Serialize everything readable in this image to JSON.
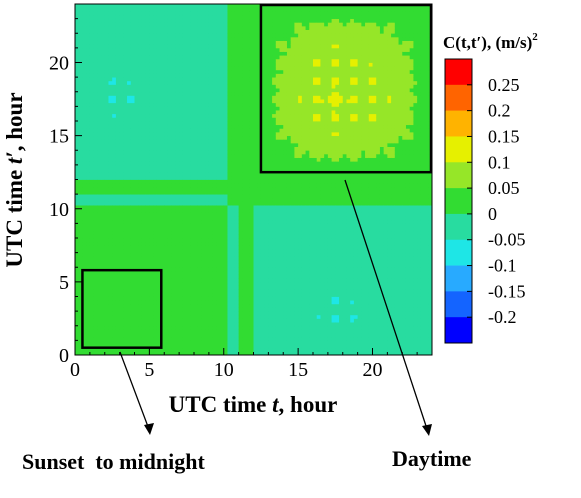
{
  "chart_data": {
    "type": "heatmap",
    "title": "",
    "xlabel_prefix": "UTC time ",
    "xlabel_var": "t",
    "xlabel_suffix": ", hour",
    "ylabel_prefix": "UTC time ",
    "ylabel_var": "t′",
    "ylabel_suffix": ", hour",
    "xlim": [
      0,
      24
    ],
    "ylim": [
      0,
      24
    ],
    "xticks": [
      0,
      5,
      10,
      15,
      20
    ],
    "yticks": [
      0,
      5,
      10,
      15,
      20
    ],
    "xtick_labels": [
      "0",
      "5",
      "10",
      "15",
      "20"
    ],
    "ytick_labels": [
      "0",
      "5",
      "10",
      "15",
      "20"
    ],
    "colorbar": {
      "title_var": "C(t,t′)",
      "title_units": ", (m/s)",
      "title_exp": "2",
      "levels": [
        0.25,
        0.2,
        0.15,
        0.1,
        0.05,
        0,
        -0.05,
        -0.1,
        -0.15,
        -0.2
      ],
      "labels": [
        "0.25",
        "0.2",
        "0.15",
        "0.1",
        "0.05",
        "0",
        "-0.05",
        "-0.1",
        "-0.15",
        "-0.2"
      ],
      "colors": [
        "#ff0000",
        "#ff6400",
        "#ffb300",
        "#e6f000",
        "#96e628",
        "#32dc32",
        "#28dca0",
        "#1ee6e6",
        "#28aaff",
        "#1464ff",
        "#0000ff"
      ]
    },
    "regions": [
      {
        "label": "Sunset  to midnight",
        "x_range": [
          0.5,
          5.8
        ],
        "y_range": [
          0.5,
          5.8
        ]
      },
      {
        "label": "Daytime",
        "x_range": [
          12.5,
          24
        ],
        "y_range": [
          12.5,
          24
        ]
      }
    ],
    "legend": "right"
  }
}
